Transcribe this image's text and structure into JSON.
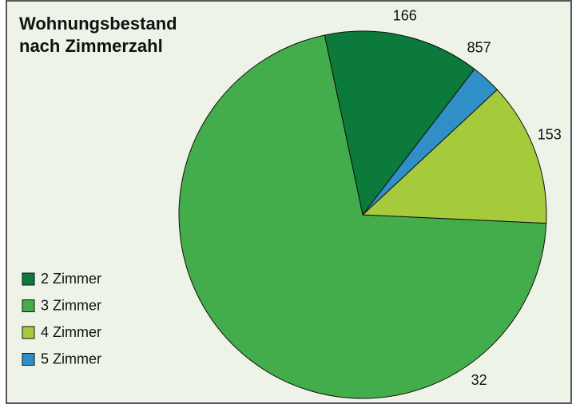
{
  "chart_data": {
    "type": "pie",
    "title": "Wohnungsbestand nach Zimmerzahl",
    "categories": [
      "2 Zimmer",
      "3 Zimmer",
      "4 Zimmer",
      "5 Zimmer"
    ],
    "values": [
      166,
      857,
      153,
      32
    ],
    "colors": [
      "#0b7a3b",
      "#44ad4b",
      "#a5cb3d",
      "#2f8fc6"
    ],
    "legend": "lower left"
  }
}
